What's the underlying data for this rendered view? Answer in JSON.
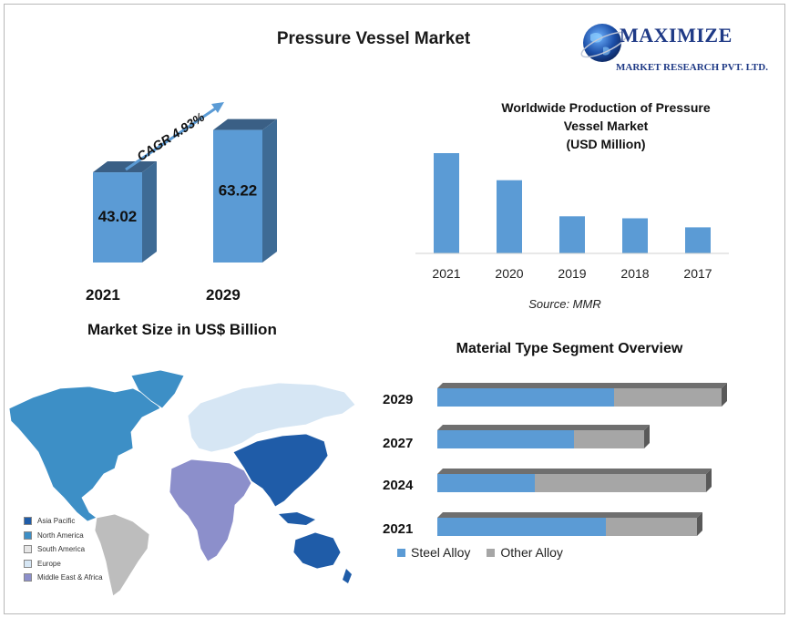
{
  "title": "Pressure Vessel Market",
  "logo": {
    "name": "MAXIMIZE",
    "subtitle": "MARKET RESEARCH PVT. LTD.",
    "icon": "globe-icon"
  },
  "market_size": {
    "caption": "Market Size in US$ Billion",
    "cagr_label": "CAGR 4.93%"
  },
  "production": {
    "title_line1": "Worldwide Production of Pressure",
    "title_line2": "Vessel Market",
    "title_line3": "(USD Million)",
    "source": "Source: MMR"
  },
  "material": {
    "title": "Material Type Segment Overview",
    "legend_steel": "Steel Alloy",
    "legend_other": "Other Alloy"
  },
  "map": {
    "legend": [
      "Asia Pacific",
      "North America",
      "South America",
      "Europe",
      "Middle East & Africa"
    ]
  },
  "colors": {
    "bar_blue": "#5b9bd5",
    "bar_side": "#3e6b95",
    "bar_top": "#3a5f85",
    "gray": "#a6a6a6",
    "gray_dark": "#6f6f6f",
    "asia_pacific": "#1f5ca8",
    "north_america": "#3d8fc6",
    "south_america": "#bdbdbd",
    "europe": "#d6e6f4",
    "middle_east_africa": "#8c8fcb"
  },
  "chart_data": [
    {
      "type": "bar",
      "title": "",
      "categories": [
        "2021",
        "2029"
      ],
      "values": [
        43.02,
        63.22
      ],
      "value_labels": [
        "43.02",
        "63.22"
      ]
    },
    {
      "type": "bar",
      "title": "Worldwide Production of Pressure Vessel Market (USD Million)",
      "categories": [
        "2021",
        "2020",
        "2019",
        "2018",
        "2017"
      ],
      "values": [
        100,
        73,
        37,
        35,
        26
      ],
      "ylim": [
        0,
        100
      ],
      "grid": false
    },
    {
      "type": "bar",
      "orientation": "horizontal",
      "stacked": true,
      "title": "Material Type Segment Overview",
      "categories": [
        "2029",
        "2027",
        "2024",
        "2021"
      ],
      "series": [
        {
          "name": "Steel Alloy",
          "values": [
            194,
            150,
            107,
            185
          ]
        },
        {
          "name": "Other Alloy",
          "values": [
            118,
            77,
            188,
            100
          ]
        }
      ]
    }
  ]
}
